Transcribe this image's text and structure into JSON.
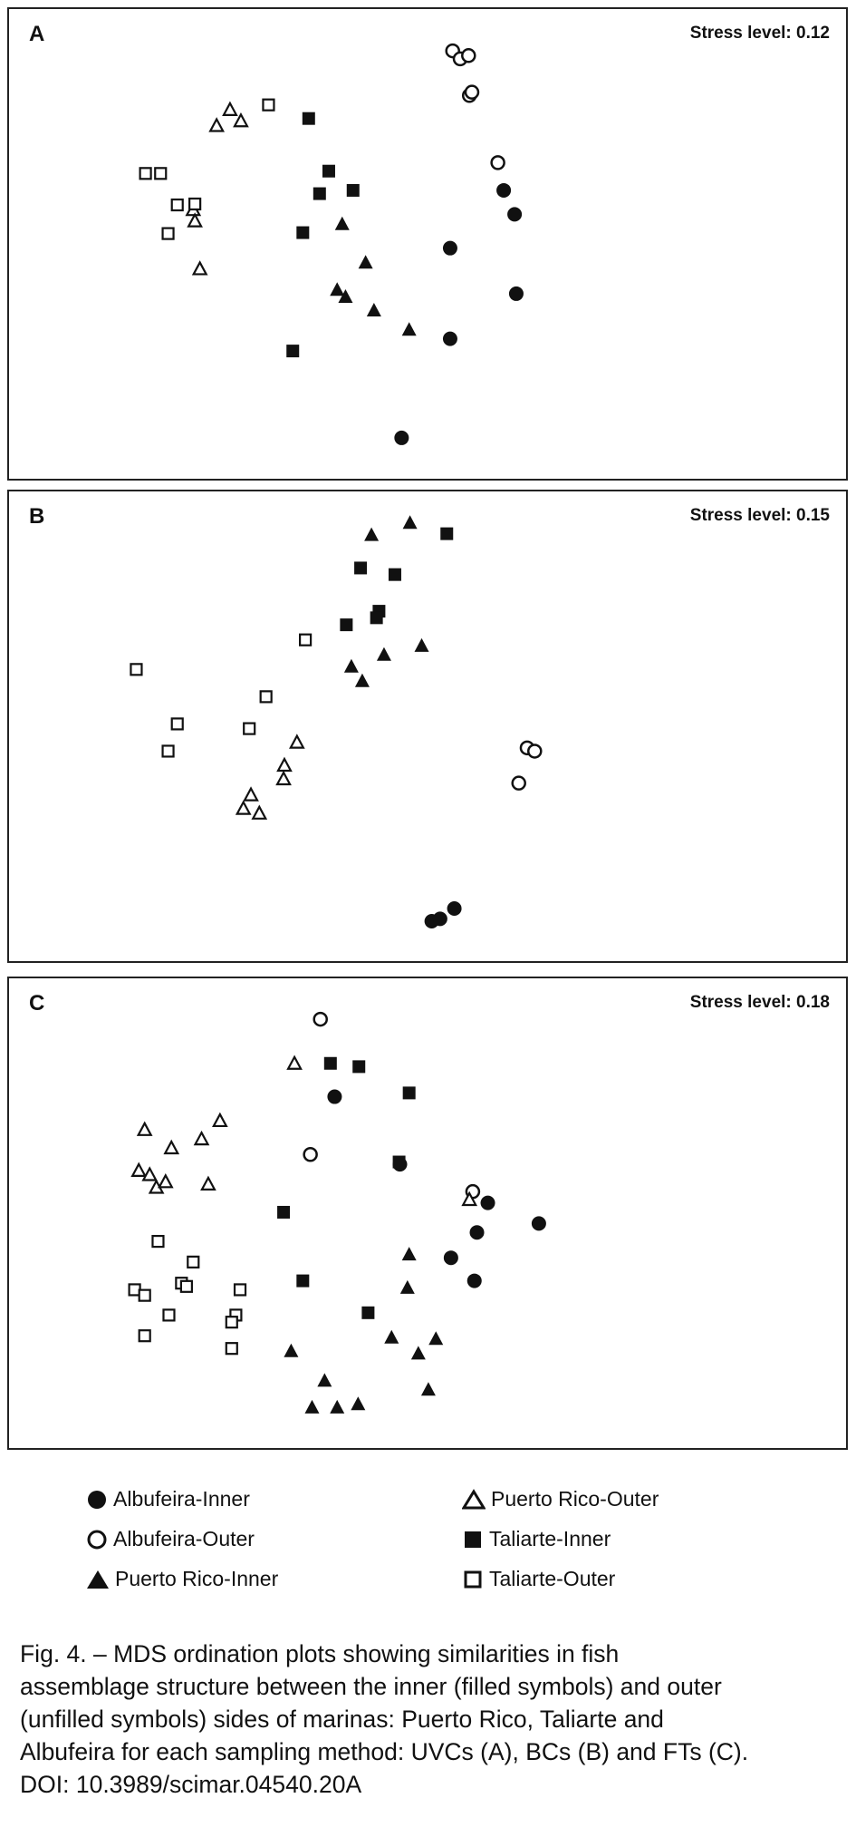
{
  "legend": {
    "albufeira_inner": "Albufeira-Inner",
    "albufeira_outer": "Albufeira-Outer",
    "puerto_rico_inner": "Puerto Rico-Inner",
    "puerto_rico_outer": "Puerto Rico-Outer",
    "taliarte_inner": "Taliarte-Inner",
    "taliarte_outer": "Taliarte-Outer"
  },
  "caption": {
    "line1": "Fig. 4. – MDS ordination plots showing similarities in fish",
    "line2": "assemblage structure between the inner (filled symbols) and outer",
    "line3": "(unfilled symbols) sides of marinas: Puerto Rico, Taliarte and",
    "line4": "Albufeira for each sampling method: UVCs (A), BCs (B) and FTs (C).",
    "line5": "DOI: 10.3989/scimar.04540.20A"
  },
  "chart_data": [
    {
      "type": "scatter",
      "panel": "A",
      "annotation": "Stress level: 0.12",
      "xlim": [
        0,
        100
      ],
      "ylim": [
        0,
        100
      ],
      "series": [
        {
          "name": "Albufeira-Inner",
          "marker": "filled-circle",
          "x": [
            59.1,
            60.4,
            52.7,
            60.6,
            52.7,
            46.9
          ],
          "y": [
            61.4,
            56.3,
            49.1,
            39.4,
            29.8,
            8.7
          ]
        },
        {
          "name": "Albufeira-Outer",
          "marker": "open-circle",
          "x": [
            53.0,
            53.9,
            54.9,
            55.0,
            55.3,
            58.4
          ],
          "y": [
            91.1,
            89.4,
            90.1,
            81.6,
            82.3,
            67.3
          ]
        },
        {
          "name": "Puerto Rico-Inner",
          "marker": "filled-triangle",
          "x": [
            39.8,
            42.6,
            39.2,
            40.2,
            43.6,
            47.8
          ],
          "y": [
            54.3,
            46.1,
            40.3,
            38.8,
            35.9,
            31.8
          ]
        },
        {
          "name": "Puerto Rico-Outer",
          "marker": "open-triangle",
          "x": [
            26.4,
            24.8,
            27.7,
            22.0,
            22.2,
            22.8
          ],
          "y": [
            78.6,
            75.2,
            76.2,
            57.3,
            54.9,
            44.7
          ]
        },
        {
          "name": "Taliarte-Inner",
          "marker": "filled-square",
          "x": [
            35.8,
            38.2,
            37.1,
            41.1,
            35.1,
            33.9
          ],
          "y": [
            76.7,
            65.5,
            60.7,
            61.4,
            52.4,
            27.2
          ]
        },
        {
          "name": "Taliarte-Outer",
          "marker": "open-square",
          "x": [
            31.0,
            16.3,
            18.1,
            20.1,
            22.2,
            19.0
          ],
          "y": [
            79.6,
            65.0,
            65.0,
            58.3,
            58.5,
            52.2
          ]
        }
      ]
    },
    {
      "type": "scatter",
      "panel": "B",
      "annotation": "Stress level: 0.15",
      "xlim": [
        0,
        100
      ],
      "ylim": [
        0,
        100
      ],
      "series": [
        {
          "name": "Albufeira-Inner",
          "marker": "filled-circle",
          "x": [
            53.2,
            50.5,
            51.5
          ],
          "y": [
            11.2,
            8.5,
            9.0
          ]
        },
        {
          "name": "Albufeira-Outer",
          "marker": "open-circle",
          "x": [
            61.9,
            62.8,
            60.9
          ],
          "y": [
            45.4,
            44.7,
            37.9
          ]
        },
        {
          "name": "Puerto Rico-Inner",
          "marker": "filled-triangle",
          "x": [
            43.3,
            47.9,
            49.3,
            44.8,
            40.9,
            42.2
          ],
          "y": [
            90.8,
            93.4,
            67.2,
            65.3,
            62.8,
            59.7
          ]
        },
        {
          "name": "Puerto Rico-Outer",
          "marker": "open-triangle",
          "x": [
            34.4,
            32.9,
            32.8,
            28.9,
            28.0,
            29.9
          ],
          "y": [
            46.6,
            41.7,
            38.8,
            35.4,
            32.5,
            31.5
          ]
        },
        {
          "name": "Taliarte-Inner",
          "marker": "filled-square",
          "x": [
            52.3,
            42.0,
            46.1,
            44.2,
            43.9,
            40.3
          ],
          "y": [
            91.0,
            83.7,
            82.3,
            74.5,
            73.1,
            71.6
          ]
        },
        {
          "name": "Taliarte-Outer",
          "marker": "open-square",
          "x": [
            35.4,
            15.2,
            30.7,
            20.1,
            28.7,
            19.0
          ],
          "y": [
            68.4,
            62.1,
            56.3,
            50.5,
            49.5,
            44.7
          ]
        }
      ]
    },
    {
      "type": "scatter",
      "panel": "C",
      "annotation": "Stress level: 0.18",
      "xlim": [
        0,
        100
      ],
      "ylim": [
        0,
        100
      ],
      "series": [
        {
          "name": "Albufeira-Inner",
          "marker": "filled-circle",
          "x": [
            38.9,
            46.7,
            57.2,
            63.3,
            55.9,
            52.8,
            55.6
          ],
          "y": [
            74.8,
            60.4,
            52.2,
            47.8,
            45.9,
            40.5,
            35.6
          ]
        },
        {
          "name": "Albufeira-Outer",
          "marker": "open-circle",
          "x": [
            37.2,
            36.0,
            55.4
          ],
          "y": [
            91.3,
            62.5,
            54.6
          ]
        },
        {
          "name": "Puerto Rico-Inner",
          "marker": "filled-triangle",
          "x": [
            47.8,
            47.6,
            45.7,
            48.9,
            51.0,
            33.7,
            37.7,
            50.1,
            36.2,
            39.2,
            41.7
          ],
          "y": [
            41.3,
            34.2,
            23.6,
            20.2,
            23.3,
            20.7,
            14.4,
            12.5,
            8.7,
            8.7,
            9.4
          ]
        },
        {
          "name": "Puerto Rico-Outer",
          "marker": "open-triangle",
          "x": [
            34.1,
            16.2,
            25.2,
            23.0,
            19.4,
            15.5,
            16.8,
            17.6,
            18.7,
            23.8,
            55.0
          ],
          "y": [
            81.9,
            67.8,
            69.7,
            65.8,
            63.9,
            59.1,
            58.2,
            55.5,
            56.7,
            56.2,
            52.9
          ]
        },
        {
          "name": "Taliarte-Inner",
          "marker": "filled-square",
          "x": [
            38.4,
            41.8,
            47.8,
            46.6,
            32.8,
            35.1,
            42.9
          ],
          "y": [
            81.9,
            81.2,
            75.6,
            60.9,
            50.2,
            35.6,
            28.8
          ]
        },
        {
          "name": "Taliarte-Outer",
          "marker": "open-square",
          "x": [
            17.8,
            22.0,
            20.6,
            21.2,
            15.0,
            16.2,
            19.1,
            27.6,
            27.1,
            26.6,
            16.2,
            26.6
          ],
          "y": [
            44.0,
            39.6,
            35.1,
            34.4,
            33.7,
            32.5,
            28.3,
            33.7,
            28.3,
            26.8,
            23.9,
            21.2
          ]
        }
      ]
    }
  ]
}
